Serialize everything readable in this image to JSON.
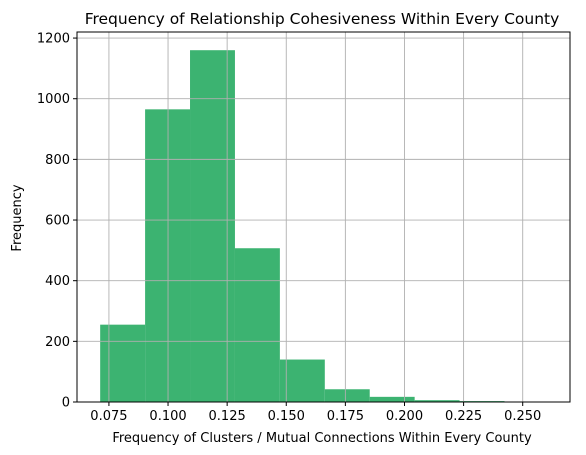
{
  "colors": {
    "bar": "#3cb371",
    "grid": "#b0b0b0",
    "axis": "#000000"
  },
  "chart_data": {
    "type": "bar",
    "title": "Frequency of Relationship Cohesiveness Within Every County",
    "xlabel": "Frequency of Clusters / Mutual Connections Within Every County",
    "ylabel": "Frequency",
    "xlim": [
      0.0615,
      0.27
    ],
    "ylim": [
      0,
      1220
    ],
    "grid": true,
    "legend": "none",
    "bin_edges": [
      0.0713,
      0.0903,
      0.1093,
      0.1283,
      0.1473,
      0.1663,
      0.1853,
      0.2043,
      0.2233,
      0.2423,
      0.2613
    ],
    "values": [
      255,
      965,
      1160,
      507,
      140,
      42,
      17,
      6,
      3,
      1
    ],
    "xticks": [
      0.075,
      0.1,
      0.125,
      0.15,
      0.175,
      0.2,
      0.225,
      0.25
    ],
    "xtick_labels": [
      "0.075",
      "0.100",
      "0.125",
      "0.150",
      "0.175",
      "0.200",
      "0.225",
      "0.250"
    ],
    "yticks": [
      0,
      200,
      400,
      600,
      800,
      1000,
      1200
    ],
    "ytick_labels": [
      "0",
      "200",
      "400",
      "600",
      "800",
      "1000",
      "1200"
    ]
  }
}
